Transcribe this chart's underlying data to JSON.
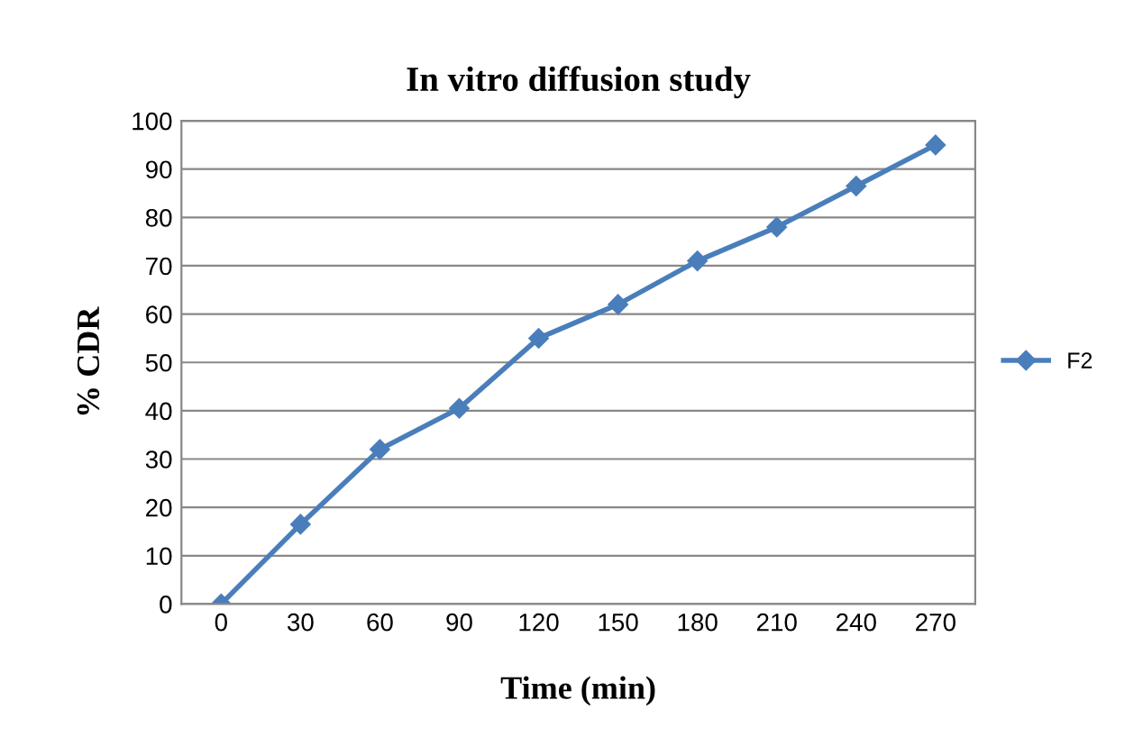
{
  "chart_data": {
    "type": "line",
    "title": "In vitro diffusion study",
    "xlabel": "Time (min)",
    "ylabel": "% CDR",
    "categories": [
      "0",
      "30",
      "60",
      "90",
      "120",
      "150",
      "180",
      "210",
      "240",
      "270"
    ],
    "series": [
      {
        "name": "F2",
        "color": "#4a7ebb",
        "values": [
          0,
          16.5,
          32,
          40.5,
          55,
          62,
          71,
          78,
          86.5,
          95
        ]
      }
    ],
    "ylim": [
      0,
      100
    ],
    "yticks": [
      0,
      10,
      20,
      30,
      40,
      50,
      60,
      70,
      80,
      90,
      100
    ],
    "grid": "y",
    "legend": "right",
    "marker": "diamond",
    "line_style": "solid"
  }
}
